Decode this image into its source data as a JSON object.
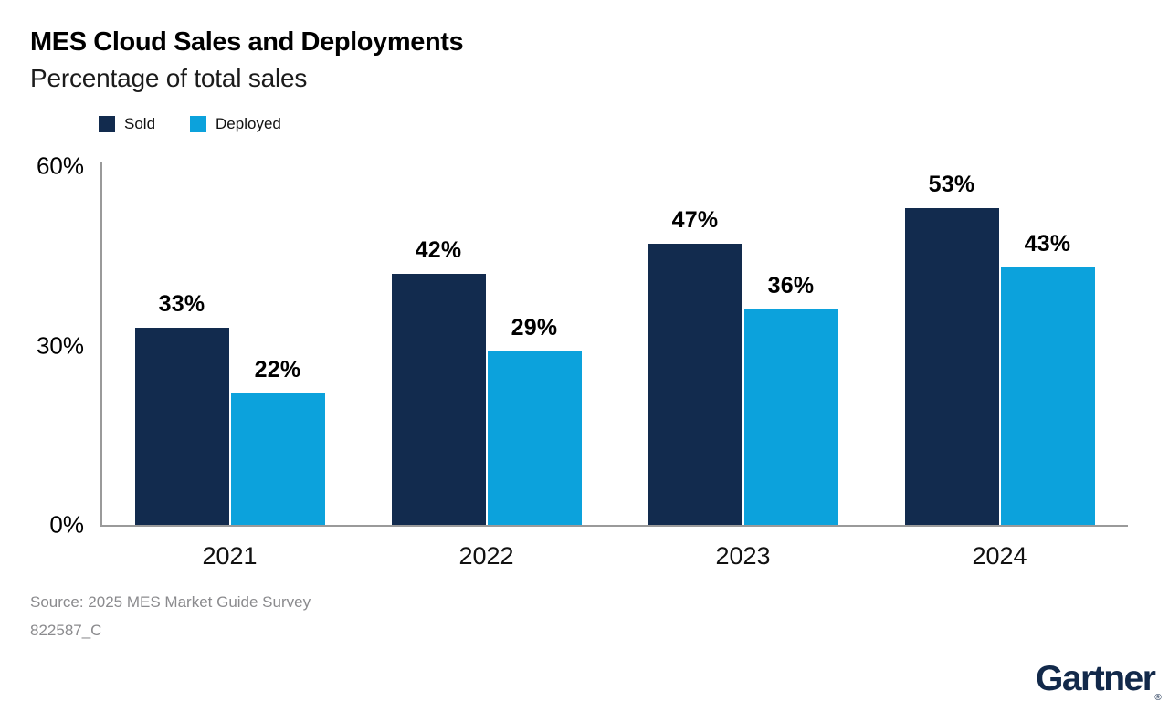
{
  "header": {
    "title": "MES Cloud Sales and Deployments",
    "subtitle": "Percentage of total sales"
  },
  "legend": [
    {
      "label": "Sold",
      "color": "#122b4e"
    },
    {
      "label": "Deployed",
      "color": "#0ca2dc"
    }
  ],
  "chart_data": {
    "type": "bar",
    "title": "MES Cloud Sales and Deployments",
    "subtitle": "Percentage of total sales",
    "categories": [
      "2021",
      "2022",
      "2023",
      "2024"
    ],
    "series": [
      {
        "name": "Sold",
        "color": "#122b4e",
        "values": [
          33,
          42,
          47,
          53
        ]
      },
      {
        "name": "Deployed",
        "color": "#0ca2dc",
        "values": [
          22,
          29,
          36,
          43
        ]
      }
    ],
    "bar_label_suffix": "%",
    "xlabel": "",
    "ylabel": "",
    "ylim": [
      0,
      60
    ],
    "yticks": [
      {
        "value": 0,
        "label": "0%"
      },
      {
        "value": 30,
        "label": "30%"
      },
      {
        "value": 60,
        "label": "60%"
      }
    ],
    "grid": false,
    "legend_position": "top-left"
  },
  "footer": {
    "source": "Source: 2025 MES Market Guide Survey",
    "doc_id": "822587_C"
  },
  "brand": {
    "name": "Gartner",
    "registered": "®",
    "color": "#12294a"
  },
  "colors": {
    "axis": "#9a9a9a",
    "value_label": "#000000",
    "source_text": "#8b8b8e"
  }
}
